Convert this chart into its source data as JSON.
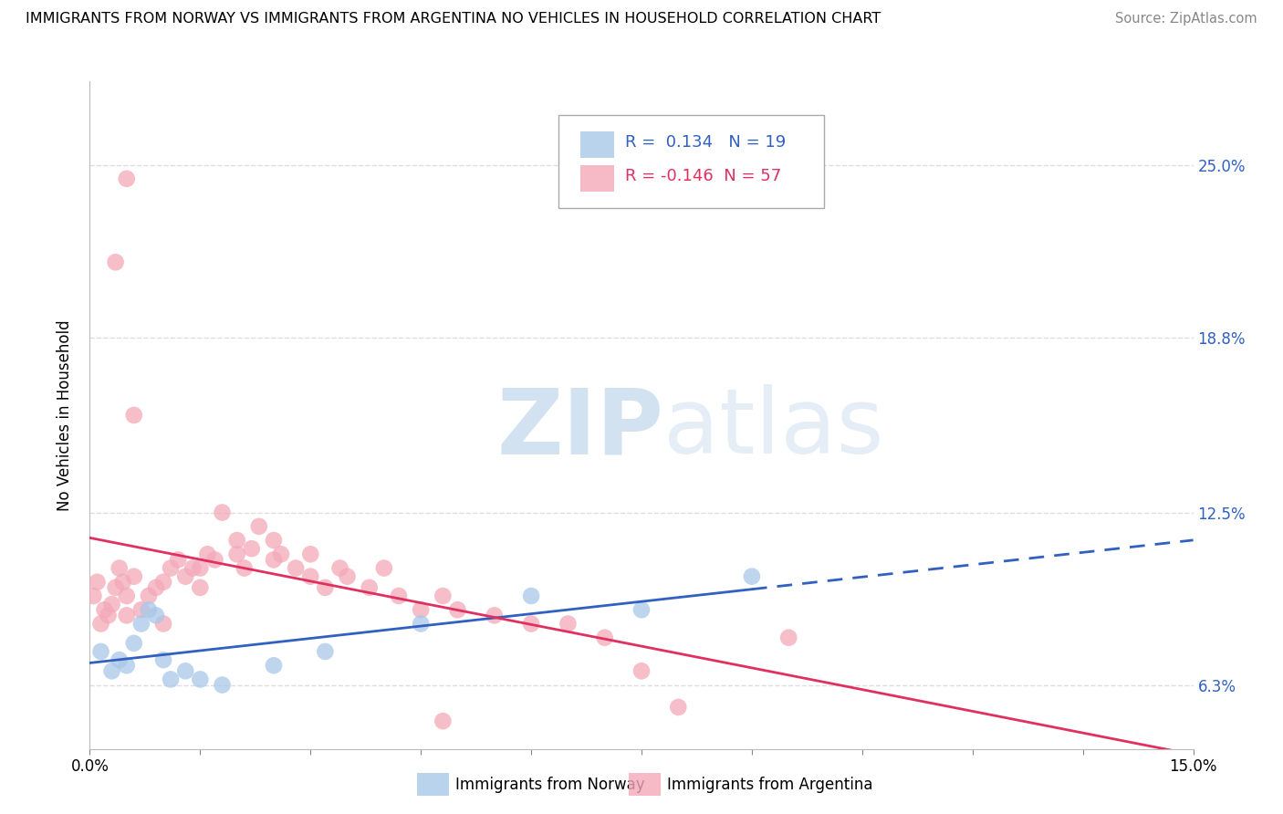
{
  "title": "IMMIGRANTS FROM NORWAY VS IMMIGRANTS FROM ARGENTINA NO VEHICLES IN HOUSEHOLD CORRELATION CHART",
  "source": "Source: ZipAtlas.com",
  "ylabel": "No Vehicles in Household",
  "legend_label_norway": "Immigrants from Norway",
  "legend_label_argentina": "Immigrants from Argentina",
  "R_norway": 0.134,
  "N_norway": 19,
  "R_argentina": -0.146,
  "N_argentina": 57,
  "norway_color": "#a8c8e8",
  "argentina_color": "#f4a8b8",
  "norway_line_color": "#3060c0",
  "argentina_line_color": "#e03060",
  "watermark_zip": "ZIP",
  "watermark_atlas": "atlas",
  "xlim": [
    0.0,
    15.0
  ],
  "ylim_bottom": 4.0,
  "ylim_top": 28.0,
  "ytick_positions": [
    6.3,
    12.5,
    18.8,
    25.0
  ],
  "ytick_labels": [
    "6.3%",
    "12.5%",
    "18.8%",
    "25.0%"
  ],
  "background_color": "#ffffff",
  "grid_color": "#dddddd",
  "norway_x": [
    0.15,
    0.3,
    0.4,
    0.5,
    0.6,
    0.7,
    0.8,
    0.9,
    1.0,
    1.1,
    1.3,
    1.5,
    1.8,
    2.5,
    3.2,
    4.5,
    6.0,
    7.5,
    9.0
  ],
  "norway_y": [
    7.5,
    6.8,
    7.2,
    7.0,
    7.8,
    8.5,
    9.0,
    8.8,
    7.2,
    6.5,
    6.8,
    6.5,
    6.3,
    7.0,
    7.5,
    8.5,
    9.5,
    9.0,
    10.2
  ],
  "argentina_x": [
    0.05,
    0.1,
    0.15,
    0.2,
    0.25,
    0.3,
    0.35,
    0.4,
    0.45,
    0.5,
    0.5,
    0.6,
    0.7,
    0.8,
    0.9,
    1.0,
    1.0,
    1.1,
    1.2,
    1.3,
    1.4,
    1.5,
    1.5,
    1.6,
    1.7,
    1.8,
    2.0,
    2.0,
    2.1,
    2.2,
    2.3,
    2.5,
    2.5,
    2.6,
    2.8,
    3.0,
    3.0,
    3.2,
    3.4,
    3.5,
    3.8,
    4.0,
    4.2,
    4.5,
    4.8,
    5.0,
    5.5,
    6.0,
    7.0,
    8.0,
    9.5,
    7.5,
    4.8,
    6.5,
    0.6,
    0.35,
    0.5
  ],
  "argentina_y": [
    9.5,
    10.0,
    8.5,
    9.0,
    8.8,
    9.2,
    9.8,
    10.5,
    10.0,
    9.5,
    8.8,
    10.2,
    9.0,
    9.5,
    9.8,
    10.0,
    8.5,
    10.5,
    10.8,
    10.2,
    10.5,
    9.8,
    10.5,
    11.0,
    10.8,
    12.5,
    11.0,
    11.5,
    10.5,
    11.2,
    12.0,
    11.5,
    10.8,
    11.0,
    10.5,
    11.0,
    10.2,
    9.8,
    10.5,
    10.2,
    9.8,
    10.5,
    9.5,
    9.0,
    9.5,
    9.0,
    8.8,
    8.5,
    8.0,
    5.5,
    8.0,
    6.8,
    5.0,
    8.5,
    16.0,
    21.5,
    24.5
  ]
}
